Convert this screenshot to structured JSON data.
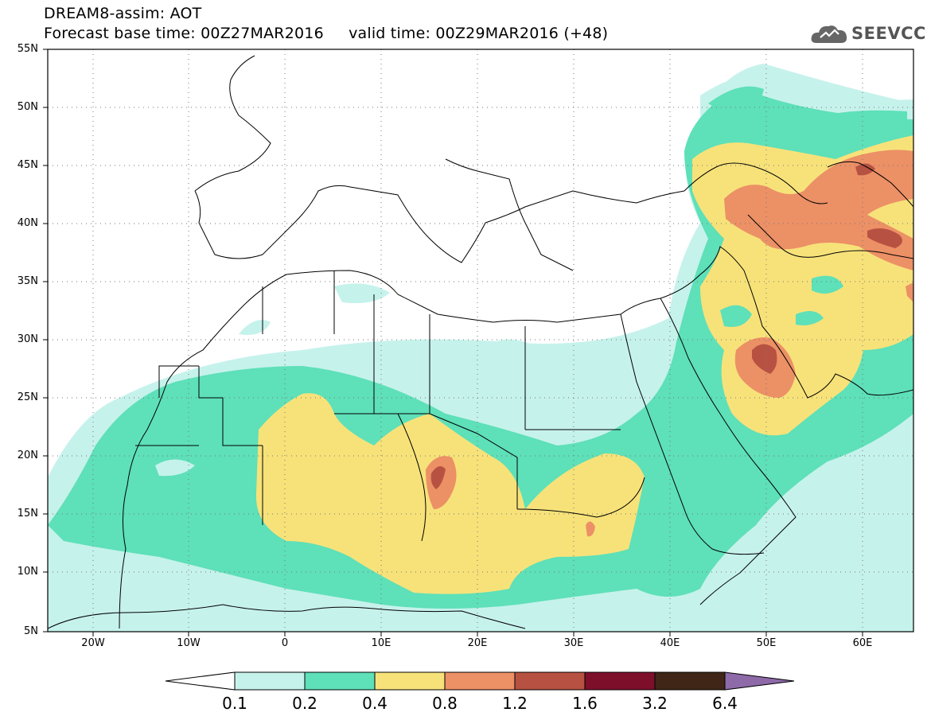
{
  "header": {
    "title": "DREAM8-assim: AOT",
    "base_time_label": "Forecast base time: 00Z27MAR2016",
    "valid_time_label": "valid time: 00Z29MAR2016 (+48)"
  },
  "logo": {
    "text": "SEEVCCC",
    "icon": "cloud-icon"
  },
  "map": {
    "lon_range": [
      -25,
      65
    ],
    "lat_range": [
      5,
      55
    ],
    "lat_labels": [
      "55N",
      "50N",
      "45N",
      "40N",
      "35N",
      "30N",
      "25N",
      "20N",
      "15N",
      "10N",
      "5N"
    ],
    "lon_labels": [
      "20W",
      "10W",
      "0",
      "10E",
      "20E",
      "30E",
      "40E",
      "50E",
      "60E"
    ],
    "grid": "dotted"
  },
  "colorbar": {
    "labels": [
      "0.1",
      "0.2",
      "0.4",
      "0.8",
      "1.2",
      "1.6",
      "3.2",
      "6.4"
    ],
    "colors": [
      "#c6f2ec",
      "#5ee0b8",
      "#f7e27a",
      "#ec9066",
      "#b75242",
      "#7e0f2a",
      "#3f2616",
      "#8e6aa8"
    ],
    "under_color": "#ffffff"
  },
  "palette": {
    "c1": "#c6f2ec",
    "c2": "#5ee0b8",
    "c3": "#f7e27a",
    "c4": "#ec9066",
    "c5": "#b75242"
  }
}
